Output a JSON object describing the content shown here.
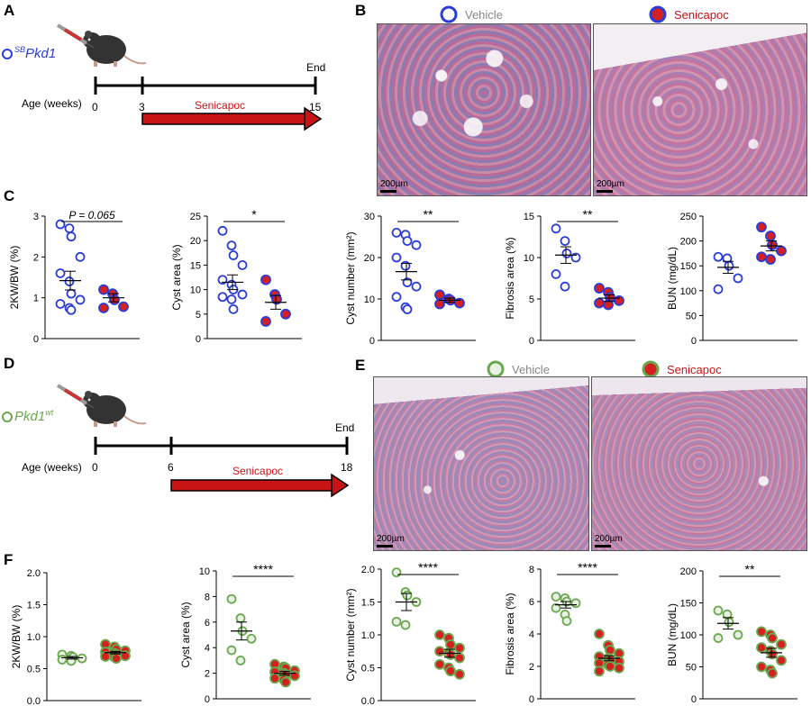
{
  "panels": {
    "A": {
      "letter": "A",
      "model": "Pkd1",
      "model_sup": "SB",
      "end_label": "End",
      "age_label": "Age (weeks)",
      "ticks": [
        "0",
        "3",
        "15"
      ],
      "treatment": "Senicapoc"
    },
    "B": {
      "letter": "B",
      "legend_vehicle": "Vehicle",
      "legend_senicapoc": "Senicapoc",
      "scale_bar": "200µm"
    },
    "C": {
      "letter": "C"
    },
    "D": {
      "letter": "D",
      "model": "Pkd1",
      "model_sup": "wt",
      "end_label": "End",
      "age_label": "Age (weeks)",
      "ticks": [
        "0",
        "6",
        "18"
      ],
      "treatment": "Senicapoc"
    },
    "E": {
      "letter": "E",
      "legend_vehicle": "Vehicle",
      "legend_senicapoc": "Senicapoc",
      "scale_bar": "200µm"
    },
    "F": {
      "letter": "F"
    }
  },
  "colors": {
    "pkd_vehicle": "#2b3cd8",
    "pkd_senicapoc_fill": "#d42020",
    "wt_vehicle": "#6aa84f",
    "wt_senicapoc_fill": "#d42020",
    "wt_ring": "#6aa84f",
    "arrow": "#c81414",
    "legend_vehicle_text": "#888888",
    "legend_senicapoc_text": "#cc1111"
  },
  "chart_data": [
    {
      "id": "C1",
      "type": "scatter",
      "ylabel": "2KW/BW (%)",
      "ylim": [
        0,
        3
      ],
      "yticks": [
        "0",
        "1",
        "2",
        "3"
      ],
      "annotation": "P = 0.065",
      "group": "pkd",
      "vehicle": [
        2.8,
        2.7,
        2.5,
        2.0,
        1.6,
        1.4,
        1.1,
        0.95,
        0.85,
        0.75,
        0.7
      ],
      "vehicle_mean": 1.42,
      "vehicle_sem": 0.23,
      "senicapoc": [
        1.2,
        1.1,
        0.95,
        0.78,
        0.75
      ],
      "senicapoc_mean": 1.0,
      "senicapoc_sem": 0.1
    },
    {
      "id": "C2",
      "type": "scatter",
      "ylabel": "Cyst area (%)",
      "ylim": [
        0,
        25
      ],
      "yticks": [
        "0",
        "5",
        "10",
        "15",
        "20",
        "25"
      ],
      "annotation": "*",
      "group": "pkd",
      "vehicle": [
        22,
        19,
        17,
        15,
        12,
        11,
        10,
        9,
        8.5,
        8,
        6
      ],
      "vehicle_mean": 11.5,
      "vehicle_sem": 1.5,
      "senicapoc": [
        12,
        9,
        8,
        5,
        3.5
      ],
      "senicapoc_mean": 7.4,
      "senicapoc_sem": 1.4
    },
    {
      "id": "C3",
      "type": "scatter",
      "ylabel": "Cyst number (mm²)",
      "ylim": [
        0,
        30
      ],
      "yticks": [
        "0",
        "10",
        "20",
        "30"
      ],
      "annotation": "**",
      "group": "pkd",
      "vehicle": [
        26,
        25.5,
        24,
        23,
        20,
        18,
        14,
        13,
        10.5,
        8,
        7.5
      ],
      "vehicle_mean": 16.6,
      "vehicle_sem": 2.0,
      "senicapoc": [
        11,
        10,
        9.7,
        9,
        8.8
      ],
      "senicapoc_mean": 9.7,
      "senicapoc_sem": 0.5
    },
    {
      "id": "C4",
      "type": "scatter",
      "ylabel": "Fibrosis area (%)",
      "ylim": [
        0,
        15
      ],
      "yticks": [
        "0",
        "5",
        "10",
        "15"
      ],
      "annotation": "**",
      "group": "pkd",
      "vehicle": [
        13.5,
        12,
        10.5,
        10,
        8,
        6.5
      ],
      "vehicle_mean": 10.3,
      "vehicle_sem": 1.0,
      "senicapoc": [
        6.3,
        5.8,
        5.2,
        4.8,
        4.5,
        4.3
      ],
      "senicapoc_mean": 5.1,
      "senicapoc_sem": 0.4
    },
    {
      "id": "C5",
      "type": "scatter",
      "ylabel": "BUN (mg/dL)",
      "ylim": [
        0,
        250
      ],
      "yticks": [
        "0",
        "50",
        "100",
        "150",
        "200",
        "250"
      ],
      "annotation": "",
      "group": "pkd",
      "vehicle": [
        168,
        165,
        150,
        125,
        103
      ],
      "vehicle_mean": 147,
      "vehicle_sem": 12,
      "senicapoc": [
        228,
        210,
        192,
        180,
        168,
        163
      ],
      "senicapoc_mean": 190,
      "senicapoc_sem": 10
    },
    {
      "id": "F1",
      "type": "scatter",
      "ylabel": "2KW/BW (%)",
      "ylim": [
        0,
        2
      ],
      "yticks": [
        "0.0",
        "0.5",
        "1.0",
        "1.5",
        "2.0"
      ],
      "annotation": "",
      "group": "wt",
      "vehicle": [
        0.72,
        0.7,
        0.68,
        0.66,
        0.64,
        0.62
      ],
      "vehicle_mean": 0.67,
      "vehicle_sem": 0.02,
      "senicapoc": [
        0.88,
        0.84,
        0.8,
        0.78,
        0.76,
        0.74,
        0.72,
        0.7,
        0.69,
        0.68,
        0.66
      ],
      "senicapoc_mean": 0.75,
      "senicapoc_sem": 0.02
    },
    {
      "id": "F2",
      "type": "scatter",
      "ylabel": "Cyst area (%)",
      "ylim": [
        0,
        10
      ],
      "yticks": [
        "0",
        "2",
        "4",
        "6",
        "8",
        "10"
      ],
      "annotation": "****",
      "group": "wt",
      "vehicle": [
        7.8,
        6.3,
        5.3,
        4.7,
        3.8,
        3.0
      ],
      "vehicle_mean": 5.3,
      "vehicle_sem": 0.7,
      "senicapoc": [
        2.7,
        2.5,
        2.4,
        2.2,
        2.1,
        2.0,
        1.9,
        1.8,
        1.6,
        1.5,
        1.3
      ],
      "senicapoc_mean": 2.0,
      "senicapoc_sem": 0.15
    },
    {
      "id": "F3",
      "type": "scatter",
      "ylabel": "Cyst number (mm²)",
      "ylim": [
        0,
        2
      ],
      "yticks": [
        "0.0",
        "0.5",
        "1.0",
        "1.5",
        "2.0"
      ],
      "annotation": "****",
      "group": "wt",
      "vehicle": [
        1.95,
        1.65,
        1.6,
        1.5,
        1.2,
        1.15
      ],
      "vehicle_mean": 1.5,
      "vehicle_sem": 0.13,
      "senicapoc": [
        1.0,
        0.95,
        0.85,
        0.8,
        0.75,
        0.72,
        0.7,
        0.65,
        0.55,
        0.5,
        0.45,
        0.4
      ],
      "senicapoc_mean": 0.72,
      "senicapoc_sem": 0.06
    },
    {
      "id": "F4",
      "type": "scatter",
      "ylabel": "Fibrosis area (%)",
      "ylim": [
        0,
        8
      ],
      "yticks": [
        "0",
        "2",
        "4",
        "6",
        "8"
      ],
      "annotation": "****",
      "group": "wt",
      "vehicle": [
        6.3,
        6.2,
        6.0,
        5.9,
        5.6,
        5.2,
        4.8
      ],
      "vehicle_mean": 5.8,
      "vehicle_sem": 0.2,
      "senicapoc": [
        4.0,
        3.3,
        3.0,
        2.8,
        2.6,
        2.5,
        2.4,
        2.3,
        2.2,
        2.1,
        2.0,
        1.9,
        1.7
      ],
      "senicapoc_mean": 2.5,
      "senicapoc_sem": 0.15
    },
    {
      "id": "F5",
      "type": "scatter",
      "ylabel": "BUN (mg/dL)",
      "ylim": [
        0,
        200
      ],
      "yticks": [
        "0",
        "50",
        "100",
        "150",
        "200"
      ],
      "annotation": "**",
      "group": "wt",
      "vehicle": [
        138,
        132,
        120,
        100,
        95
      ],
      "vehicle_mean": 118,
      "vehicle_sem": 9,
      "senicapoc": [
        105,
        100,
        95,
        85,
        80,
        75,
        70,
        60,
        50,
        45,
        40
      ],
      "senicapoc_mean": 72,
      "senicapoc_sem": 7
    }
  ]
}
